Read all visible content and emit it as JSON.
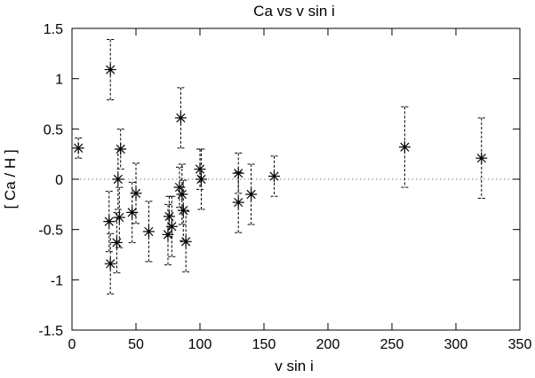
{
  "chart_data": {
    "type": "scatter",
    "title": "Ca  vs  v sin i",
    "xlabel": "v sin i",
    "ylabel": "[ Ca / H ]",
    "xlim": [
      0,
      350
    ],
    "ylim": [
      -1.5,
      1.5
    ],
    "x_ticks": [
      0,
      50,
      100,
      150,
      200,
      250,
      300,
      350
    ],
    "x_tick_labels": [
      "0",
      "50",
      "100",
      "150",
      "200",
      "250",
      "300",
      "350"
    ],
    "y_ticks": [
      -1.5,
      -1,
      -0.5,
      0,
      0.5,
      1,
      1.5
    ],
    "y_tick_labels": [
      "-1.5",
      "-1",
      "-0.5",
      "0",
      "0.5",
      "1",
      "1.5"
    ],
    "grid": false,
    "reference_line": {
      "y": 0,
      "style": "dotted"
    },
    "marker": "asterisk",
    "colors": {
      "marker": "#000000",
      "errorbar": "#000000",
      "reference": "#808080"
    },
    "points": [
      {
        "x": 5,
        "y": 0.31,
        "err": 0.1
      },
      {
        "x": 29,
        "y": -0.42,
        "err": 0.3
      },
      {
        "x": 30,
        "y": -0.84,
        "err": 0.3
      },
      {
        "x": 30,
        "y": 1.09,
        "err": 0.3
      },
      {
        "x": 35,
        "y": -0.63,
        "err": 0.3
      },
      {
        "x": 36,
        "y": 0.0,
        "err": 0.3
      },
      {
        "x": 37,
        "y": -0.38,
        "err": 0.3
      },
      {
        "x": 38,
        "y": 0.3,
        "err": 0.2
      },
      {
        "x": 47,
        "y": -0.33,
        "err": 0.3
      },
      {
        "x": 50,
        "y": -0.14,
        "err": 0.3
      },
      {
        "x": 60,
        "y": -0.52,
        "err": 0.3
      },
      {
        "x": 75,
        "y": -0.55,
        "err": 0.3
      },
      {
        "x": 76,
        "y": -0.37,
        "err": 0.2
      },
      {
        "x": 78,
        "y": -0.47,
        "err": 0.3
      },
      {
        "x": 84,
        "y": -0.08,
        "err": 0.2
      },
      {
        "x": 85,
        "y": 0.61,
        "err": 0.3
      },
      {
        "x": 86,
        "y": -0.15,
        "err": 0.3
      },
      {
        "x": 87,
        "y": -0.31,
        "err": 0.3
      },
      {
        "x": 89,
        "y": -0.62,
        "err": 0.3
      },
      {
        "x": 100,
        "y": 0.1,
        "err": 0.2
      },
      {
        "x": 101,
        "y": 0.0,
        "err": 0.3
      },
      {
        "x": 130,
        "y": 0.06,
        "err": 0.2
      },
      {
        "x": 130,
        "y": -0.23,
        "err": 0.3
      },
      {
        "x": 140,
        "y": -0.15,
        "err": 0.3
      },
      {
        "x": 158,
        "y": 0.03,
        "err": 0.2
      },
      {
        "x": 260,
        "y": 0.32,
        "err": 0.4
      },
      {
        "x": 320,
        "y": 0.21,
        "err": 0.4
      }
    ]
  }
}
